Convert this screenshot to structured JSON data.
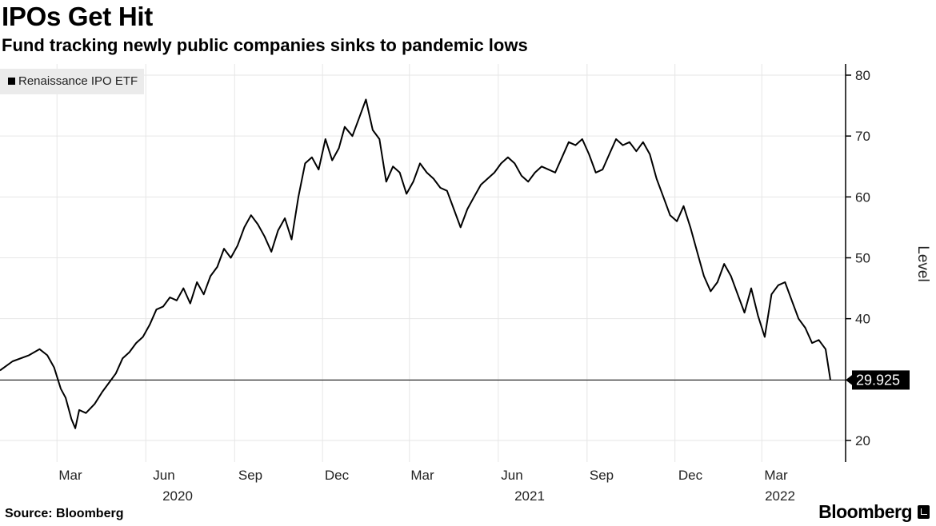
{
  "chart_data": {
    "type": "line",
    "title": "IPOs Get Hit",
    "subtitle": "Fund tracking newly public companies sinks to pandemic lows",
    "ylabel": "Level",
    "ylim": [
      17,
      82
    ],
    "yticks": [
      20,
      30,
      40,
      50,
      60,
      70,
      80
    ],
    "ytick_labels": [
      "20",
      "40",
      "50",
      "60",
      "70",
      "80"
    ],
    "ytick_values_shown": [
      20,
      40,
      50,
      60,
      70,
      80
    ],
    "grid": true,
    "legend_placement": "top-left",
    "x_month_labels": [
      "Mar",
      "Jun",
      "Sep",
      "Dec",
      "Mar",
      "Jun",
      "Sep",
      "Dec",
      "Mar"
    ],
    "x_year_labels": [
      "2020",
      "2021",
      "2022"
    ],
    "series": [
      {
        "name": "Renaissance IPO ETF",
        "color": "#000000",
        "x": [
          "2020-01-02",
          "2020-01-15",
          "2020-02-01",
          "2020-02-12",
          "2020-02-20",
          "2020-02-27",
          "2020-03-05",
          "2020-03-10",
          "2020-03-16",
          "2020-03-20",
          "2020-03-24",
          "2020-03-31",
          "2020-04-09",
          "2020-04-17",
          "2020-04-24",
          "2020-05-01",
          "2020-05-08",
          "2020-05-15",
          "2020-05-22",
          "2020-05-29",
          "2020-06-05",
          "2020-06-12",
          "2020-06-19",
          "2020-06-26",
          "2020-07-03",
          "2020-07-10",
          "2020-07-17",
          "2020-07-24",
          "2020-07-31",
          "2020-08-07",
          "2020-08-14",
          "2020-08-21",
          "2020-08-28",
          "2020-09-04",
          "2020-09-11",
          "2020-09-18",
          "2020-09-25",
          "2020-10-02",
          "2020-10-09",
          "2020-10-16",
          "2020-10-23",
          "2020-10-30",
          "2020-11-06",
          "2020-11-13",
          "2020-11-20",
          "2020-11-27",
          "2020-12-04",
          "2020-12-11",
          "2020-12-18",
          "2020-12-24",
          "2021-01-01",
          "2021-01-08",
          "2021-01-15",
          "2021-01-22",
          "2021-01-29",
          "2021-02-05",
          "2021-02-12",
          "2021-02-19",
          "2021-02-26",
          "2021-03-05",
          "2021-03-12",
          "2021-03-19",
          "2021-03-26",
          "2021-04-02",
          "2021-04-09",
          "2021-04-16",
          "2021-04-23",
          "2021-04-30",
          "2021-05-07",
          "2021-05-14",
          "2021-05-21",
          "2021-05-28",
          "2021-06-04",
          "2021-06-11",
          "2021-06-18",
          "2021-06-25",
          "2021-07-02",
          "2021-07-09",
          "2021-07-16",
          "2021-07-23",
          "2021-07-30",
          "2021-08-06",
          "2021-08-13",
          "2021-08-20",
          "2021-08-27",
          "2021-09-03",
          "2021-09-10",
          "2021-09-17",
          "2021-09-24",
          "2021-10-01",
          "2021-10-08",
          "2021-10-15",
          "2021-10-22",
          "2021-10-29",
          "2021-11-05",
          "2021-11-12",
          "2021-11-19",
          "2021-11-26",
          "2021-12-03",
          "2021-12-10",
          "2021-12-17",
          "2021-12-24",
          "2021-12-31",
          "2022-01-07",
          "2022-01-14",
          "2022-01-21",
          "2022-01-28",
          "2022-02-04",
          "2022-02-11",
          "2022-02-18",
          "2022-02-25",
          "2022-03-04",
          "2022-03-11",
          "2022-03-18",
          "2022-03-25",
          "2022-04-01",
          "2022-04-08",
          "2022-04-15",
          "2022-04-22",
          "2022-04-29",
          "2022-05-06",
          "2022-05-11"
        ],
        "values": [
          31.5,
          33.0,
          34.0,
          35.0,
          34.0,
          32.0,
          28.5,
          27.0,
          23.5,
          22.0,
          25.0,
          24.5,
          26.0,
          28.0,
          29.5,
          31.0,
          33.5,
          34.5,
          36.0,
          37.0,
          39.0,
          41.5,
          42.0,
          43.5,
          43.0,
          45.0,
          42.5,
          46.0,
          44.0,
          47.0,
          48.5,
          51.5,
          50.0,
          52.0,
          55.0,
          57.0,
          55.5,
          53.5,
          51.0,
          54.5,
          56.5,
          53.0,
          60.0,
          65.5,
          66.5,
          64.5,
          69.5,
          66.0,
          68.0,
          71.5,
          70.0,
          73.0,
          76.0,
          71.0,
          69.5,
          62.5,
          65.0,
          64.0,
          60.5,
          62.5,
          65.5,
          64.0,
          63.0,
          61.5,
          61.0,
          58.0,
          55.0,
          58.0,
          60.0,
          62.0,
          63.0,
          64.0,
          65.5,
          66.5,
          65.5,
          63.5,
          62.5,
          64.0,
          65.0,
          64.5,
          64.0,
          66.5,
          69.0,
          68.5,
          69.5,
          67.0,
          64.0,
          64.5,
          67.0,
          69.5,
          68.5,
          69.0,
          67.5,
          69.0,
          67.0,
          63.0,
          60.0,
          57.0,
          56.0,
          58.5,
          55.0,
          51.0,
          47.0,
          44.5,
          46.0,
          49.0,
          47.0,
          44.0,
          41.0,
          45.0,
          40.5,
          37.0,
          44.0,
          45.5,
          46.0,
          43.0,
          40.0,
          38.5,
          36.0,
          36.5,
          35.0,
          29.925
        ]
      }
    ],
    "last_value": "29.925",
    "last_value_line": 29.925
  },
  "footer": {
    "source": "Source: Bloomberg",
    "brand": "Bloomberg"
  }
}
